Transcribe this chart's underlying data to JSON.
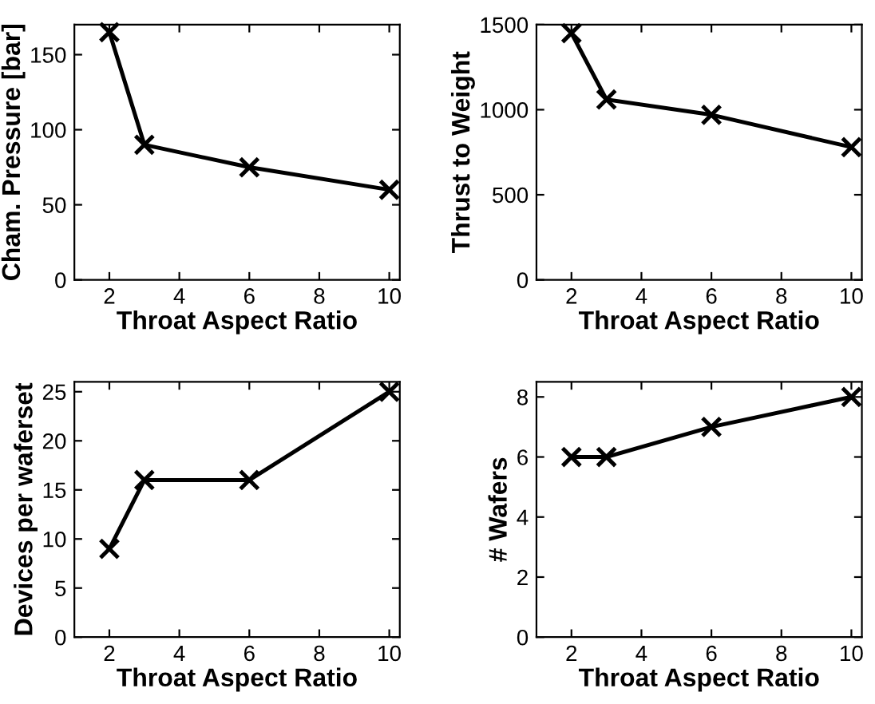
{
  "chart_data": [
    {
      "type": "line",
      "xlabel": "Throat Aspect Ratio",
      "ylabel": "Cham. Pressure [bar]",
      "x": [
        2,
        3,
        6,
        10
      ],
      "series": [
        {
          "color": "#000000",
          "values": [
            165,
            90,
            75,
            60
          ]
        }
      ],
      "xlim": [
        1,
        10.3
      ],
      "xticks": [
        2,
        4,
        6,
        8,
        10
      ],
      "ylim": [
        0,
        170
      ],
      "yticks": [
        0,
        50,
        100,
        150
      ],
      "marker": "cross",
      "line_style": "solid",
      "grid": false,
      "legend": false
    },
    {
      "type": "line",
      "xlabel": "Throat Aspect Ratio",
      "ylabel": "Thrust to Weight",
      "x": [
        2,
        3,
        6,
        10
      ],
      "series": [
        {
          "color": "#000000",
          "values": [
            1450,
            1060,
            970,
            780
          ]
        }
      ],
      "xlim": [
        1,
        10.3
      ],
      "xticks": [
        2,
        4,
        6,
        8,
        10
      ],
      "ylim": [
        0,
        1500
      ],
      "yticks": [
        0,
        500,
        1000,
        1500
      ],
      "marker": "cross",
      "line_style": "solid",
      "grid": false,
      "legend": false
    },
    {
      "type": "line",
      "xlabel": "Throat Aspect Ratio",
      "ylabel": "Devices per waferset",
      "x": [
        2,
        3,
        6,
        10
      ],
      "series": [
        {
          "color": "#000000",
          "values": [
            9,
            16,
            16,
            25
          ]
        }
      ],
      "xlim": [
        1,
        10.3
      ],
      "xticks": [
        2,
        4,
        6,
        8,
        10
      ],
      "ylim": [
        0,
        26
      ],
      "yticks": [
        0,
        5,
        10,
        15,
        20,
        25
      ],
      "marker": "cross",
      "line_style": "solid",
      "grid": false,
      "legend": false
    },
    {
      "type": "line",
      "xlabel": "Throat Aspect Ratio",
      "ylabel": "# Wafers",
      "x": [
        2,
        3,
        6,
        10
      ],
      "series": [
        {
          "color": "#000000",
          "values": [
            6,
            6,
            7,
            8
          ]
        }
      ],
      "xlim": [
        1,
        10.3
      ],
      "xticks": [
        2,
        4,
        6,
        8,
        10
      ],
      "ylim": [
        0,
        8.5
      ],
      "yticks": [
        0,
        2,
        4,
        6,
        8
      ],
      "marker": "cross",
      "line_style": "solid",
      "grid": false,
      "legend": false
    }
  ]
}
